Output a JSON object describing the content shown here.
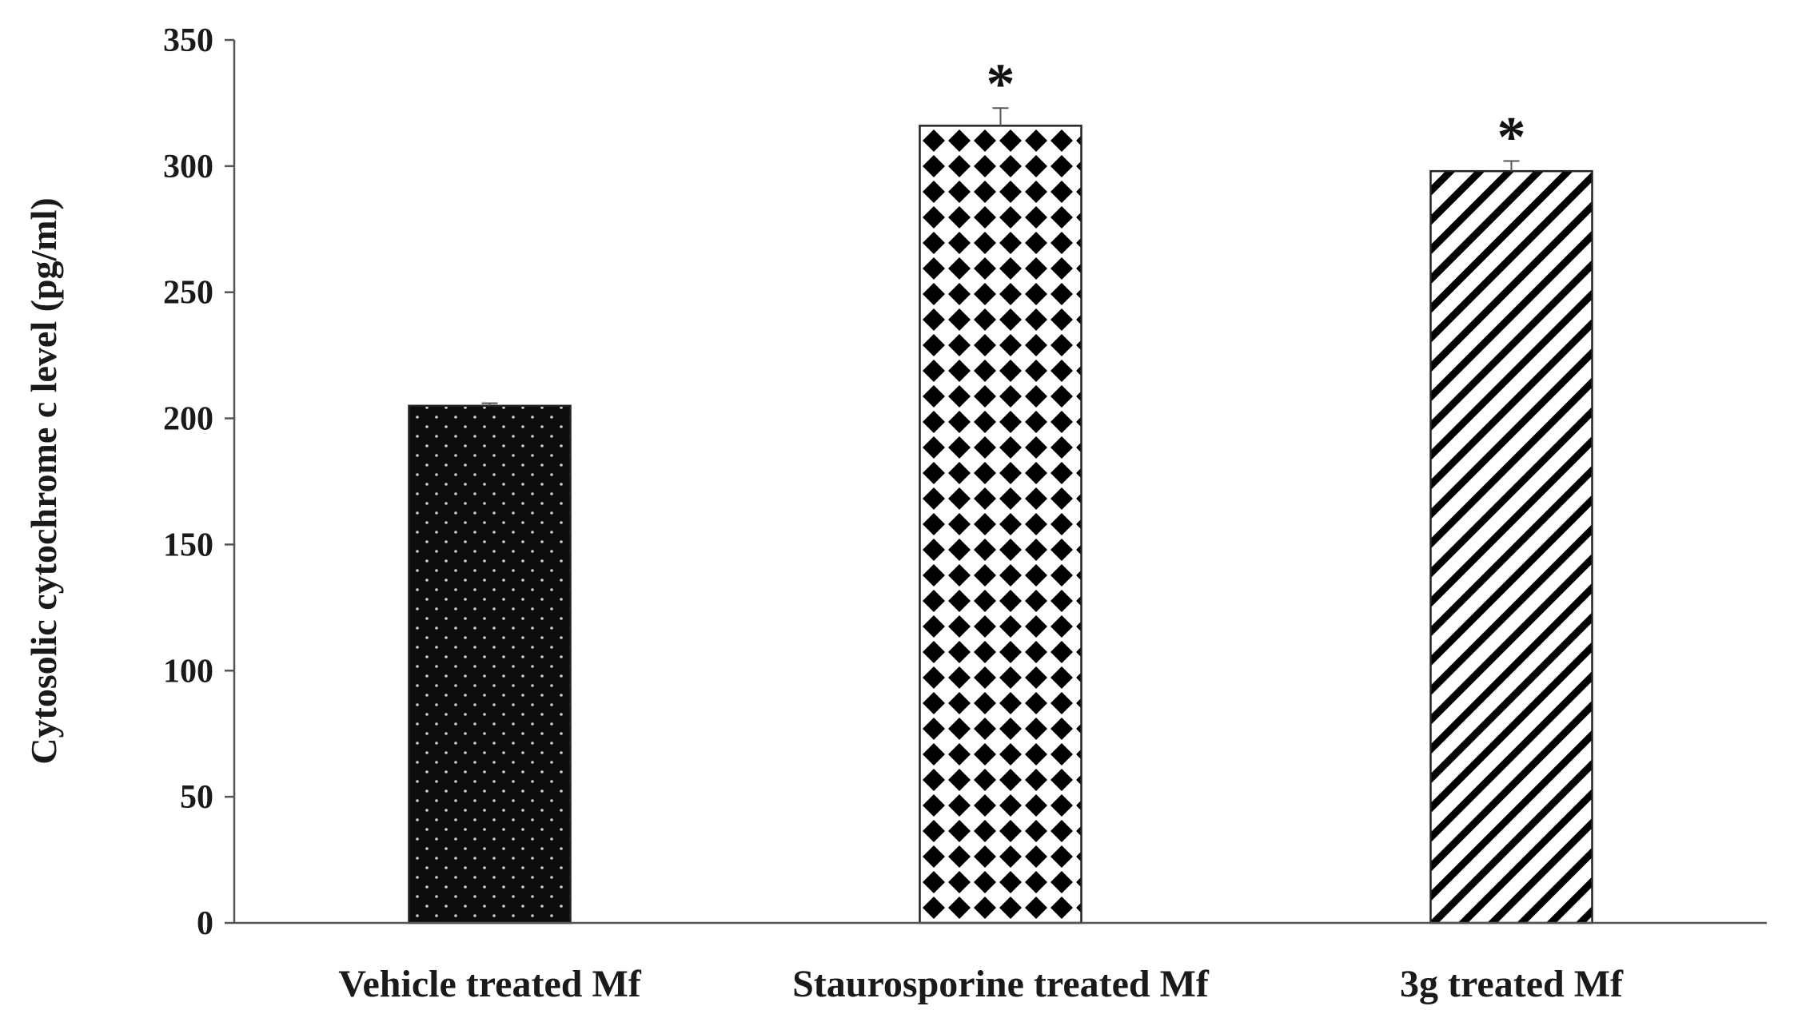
{
  "chart_data": {
    "type": "bar",
    "title": "",
    "xlabel": "",
    "ylabel": "Cytosolic cytochrome c level (pg/ml)",
    "ylim": [
      0,
      350
    ],
    "yticks": [
      0,
      50,
      100,
      150,
      200,
      250,
      300,
      350
    ],
    "grid": false,
    "legend": "none",
    "categories": [
      "Vehicle treated Mf",
      "Staurosporine treated Mf",
      "3g treated Mf"
    ],
    "values": [
      205,
      316,
      298
    ],
    "errors": [
      1,
      7,
      4
    ],
    "annotations": [
      "",
      "*",
      "*"
    ],
    "fills": [
      "dots-on-black",
      "diamond-checker",
      "diagonal-stripes"
    ]
  }
}
